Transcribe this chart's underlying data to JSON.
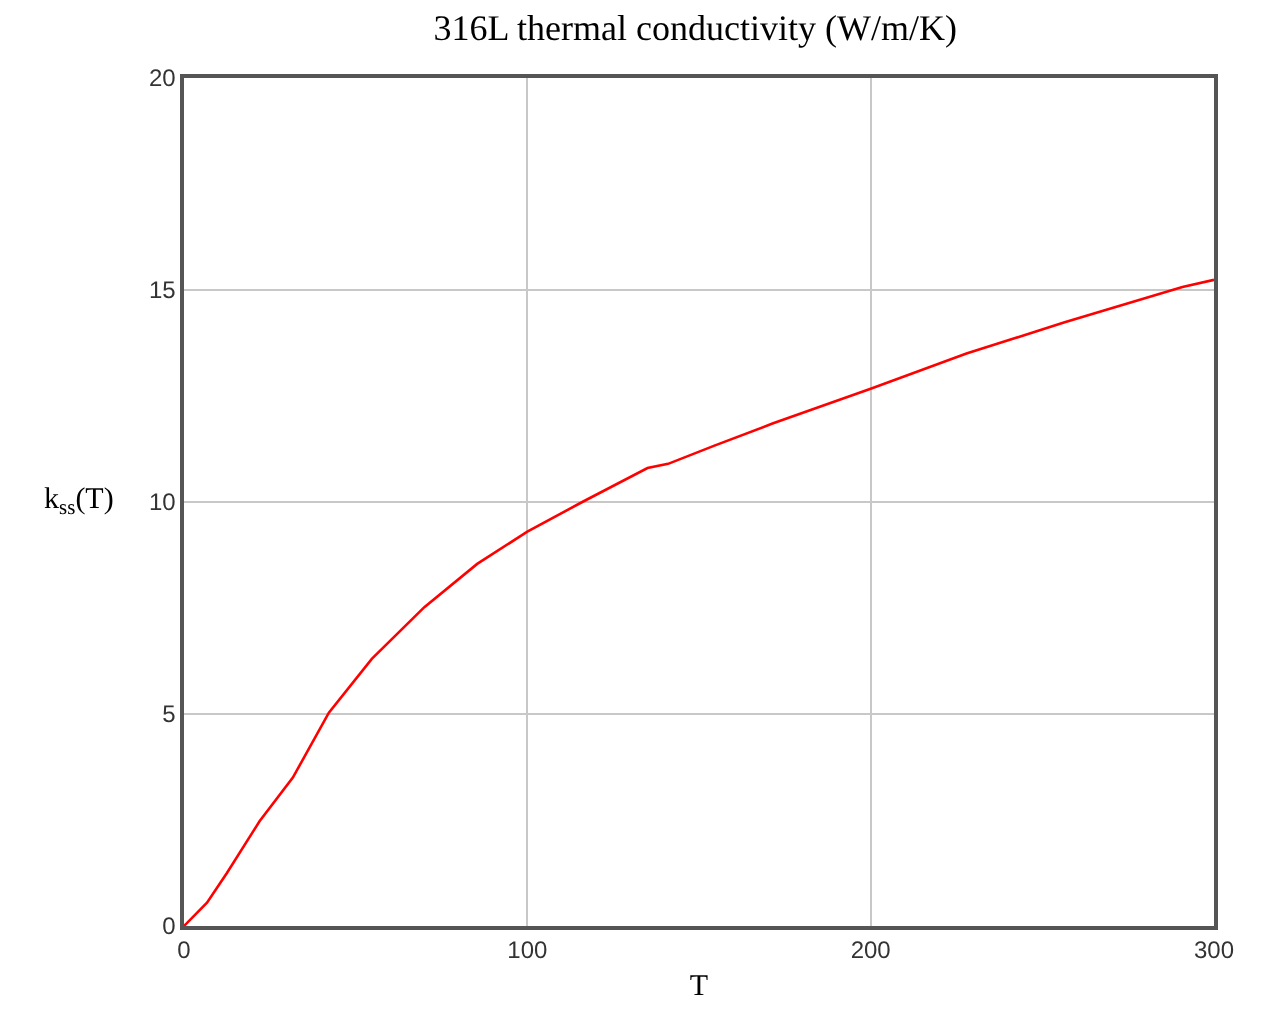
{
  "chart_data": {
    "type": "line",
    "title": "316L thermal conductivity (W/m/K)",
    "xlabel": "T",
    "ylabel": "k$_{ss}$(T)",
    "x": [
      0,
      6.7,
      12.5,
      22,
      31.7,
      42.2,
      54.7,
      70,
      85.4,
      100,
      116,
      135,
      141,
      154.5,
      171.4,
      200,
      227.9,
      256.5,
      290.8,
      300
    ],
    "series": [
      {
        "color": "#ff0000",
        "values": [
          0,
          0.55,
          1.25,
          2.47,
          3.5,
          5.03,
          6.3,
          7.52,
          8.54,
          9.3,
          10.0,
          10.8,
          10.9,
          11.33,
          11.85,
          12.67,
          13.5,
          14.24,
          15.07,
          15.24
        ]
      }
    ],
    "xlim": [
      0,
      300
    ],
    "xticks": [
      0,
      100,
      200,
      300
    ],
    "ylim": [
      0,
      20
    ],
    "yticks": [
      0,
      5,
      10,
      15,
      20
    ],
    "grid": true,
    "marker": "none",
    "line_style": "solid"
  }
}
